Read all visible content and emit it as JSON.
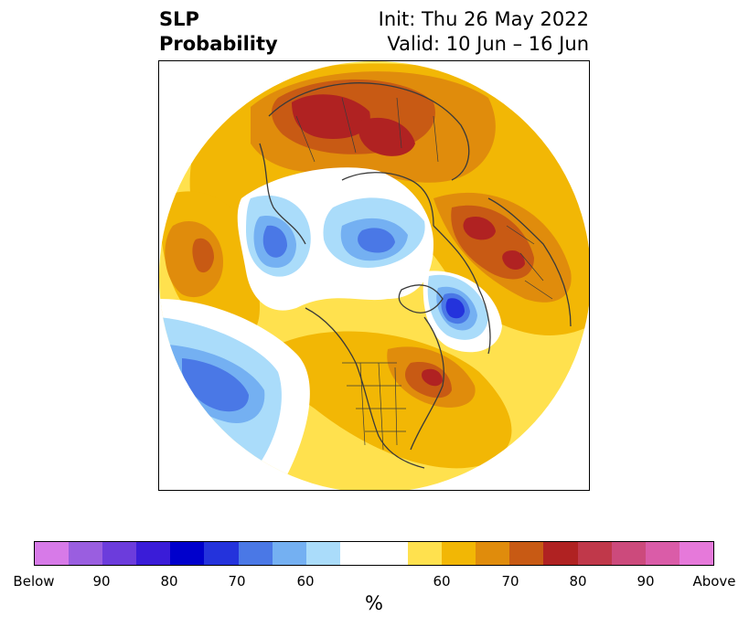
{
  "header": {
    "title_line1": "SLP",
    "title_line2": "Probability",
    "init_label": "Init: Thu 26 May 2022",
    "valid_label": "Valid: 10 Jun – 16 Jun"
  },
  "colorbar": {
    "unit_label": "%",
    "colors": [
      "#d77ae8",
      "#9a5ee0",
      "#6c3cdc",
      "#3a1cd8",
      "#0000cc",
      "#2433dc",
      "#4a78e6",
      "#74b0f2",
      "#aadcfa",
      "#ffffff",
      "#ffffff",
      "#ffe14e",
      "#f2b705",
      "#e08c0c",
      "#c85a14",
      "#b02222",
      "#c0384a",
      "#cc4a7c",
      "#da5ca8",
      "#e679da"
    ],
    "tick_labels": [
      "Below",
      "90",
      "80",
      "70",
      "60",
      "60",
      "70",
      "80",
      "90",
      "Above"
    ]
  }
}
